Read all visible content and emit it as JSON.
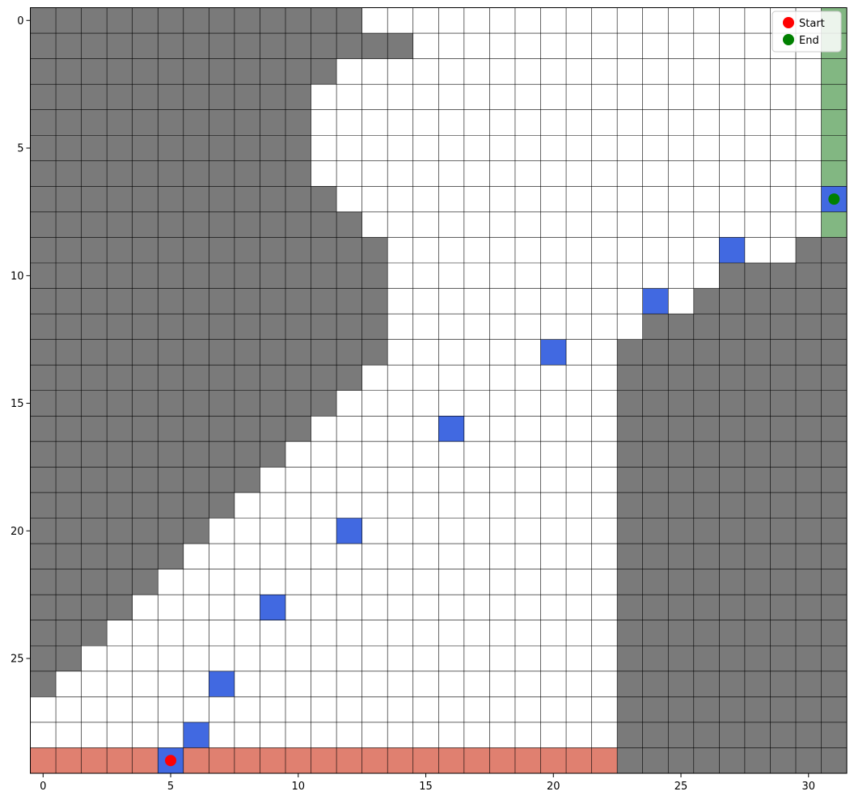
{
  "grid": {
    "rows": 30,
    "cols": 32,
    "colors": {
      "wall": "#7a7a7a",
      "open": "#ffffff",
      "waypoint": "#4169e1",
      "start_band": "#e08070",
      "end_band": "#82b782",
      "start_marker": "#ff0000",
      "end_marker": "#008000",
      "gridline": "#000000"
    },
    "wall_left_boundary_by_row": [
      13,
      15,
      12,
      11,
      11,
      11,
      11,
      12,
      13,
      14,
      14,
      14,
      14,
      14,
      13,
      12,
      11,
      10,
      9,
      8,
      7,
      6,
      5,
      4,
      3,
      2,
      1,
      0,
      0,
      0
    ],
    "wall_right_start_rows": {
      "first_row_full_from_col_23": 13,
      "runs": [
        {
          "row": 9,
          "from_col": 30
        },
        {
          "row": 10,
          "from_col": 27
        },
        {
          "row": 11,
          "from_col": 26
        },
        {
          "row": 12,
          "from_col": 24
        }
      ]
    },
    "waypoints": [
      {
        "row": 7,
        "col": 31
      },
      {
        "row": 9,
        "col": 27
      },
      {
        "row": 11,
        "col": 24
      },
      {
        "row": 13,
        "col": 20
      },
      {
        "row": 16,
        "col": 16
      },
      {
        "row": 20,
        "col": 12
      },
      {
        "row": 23,
        "col": 9
      },
      {
        "row": 26,
        "col": 7
      },
      {
        "row": 28,
        "col": 6
      },
      {
        "row": 29,
        "col": 5
      }
    ],
    "start_band": {
      "row": 29,
      "col_from": 0,
      "col_to": 22
    },
    "end_band": {
      "col": 31,
      "row_from": 0,
      "row_to": 8
    },
    "start": {
      "row": 29,
      "col": 5
    },
    "end": {
      "row": 7,
      "col": 31
    }
  },
  "axes": {
    "x_ticks": [
      "0",
      "5",
      "10",
      "15",
      "20",
      "25",
      "30"
    ],
    "y_ticks": [
      "0",
      "5",
      "10",
      "15",
      "20",
      "25"
    ]
  },
  "legend": {
    "placement": "top-right",
    "items": [
      {
        "label": "Start",
        "color": "#ff0000"
      },
      {
        "label": "End",
        "color": "#008000"
      }
    ]
  }
}
